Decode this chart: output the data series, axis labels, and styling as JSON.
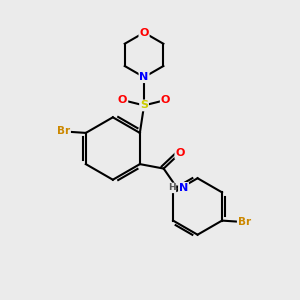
{
  "background_color": "#ebebeb",
  "atom_colors": {
    "C": "#000000",
    "H": "#000000",
    "N": "#0000ff",
    "O": "#ff0000",
    "S": "#cccc00",
    "Br": "#cc8800"
  },
  "bond_color": "#000000",
  "bond_width": 1.5
}
